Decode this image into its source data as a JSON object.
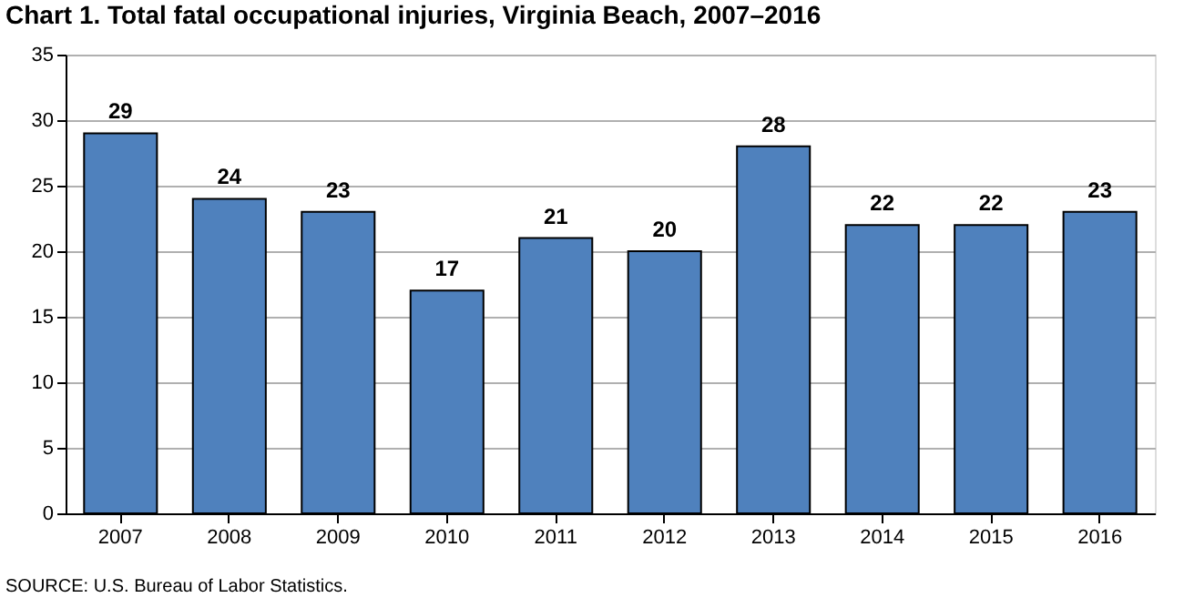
{
  "chart_data": {
    "type": "bar",
    "title": "Chart 1. Total fatal occupational injuries, Virginia Beach, 2007–2016",
    "categories": [
      "2007",
      "2008",
      "2009",
      "2010",
      "2011",
      "2012",
      "2013",
      "2014",
      "2015",
      "2016"
    ],
    "values": [
      29,
      24,
      23,
      17,
      21,
      20,
      28,
      22,
      22,
      23
    ],
    "color": "#4f81bd",
    "ylim": [
      0,
      35
    ],
    "yticks": [
      0,
      5,
      10,
      15,
      20,
      25,
      30,
      35
    ],
    "grid": "y",
    "data_labels": true,
    "annotations": [
      "SOURCE: U.S. Bureau of Labor Statistics."
    ]
  }
}
